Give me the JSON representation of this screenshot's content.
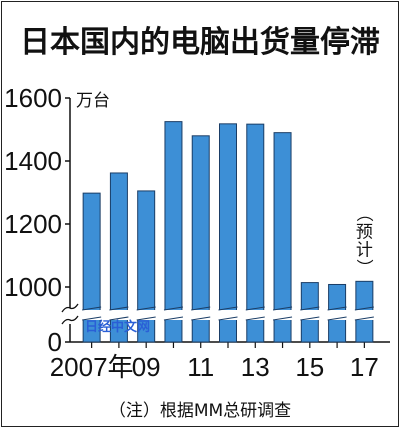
{
  "chart_data": {
    "type": "bar",
    "title": "日本国内的电脑出货量停滞",
    "unit": "万台",
    "categories": [
      "2007",
      "2008",
      "2009",
      "2010",
      "2011",
      "2012",
      "2013",
      "2014",
      "2015",
      "2016",
      "2017"
    ],
    "x_tick_labels": [
      "2007年",
      "09",
      "11",
      "13",
      "15",
      "17"
    ],
    "values": [
      1298,
      1362,
      1305,
      1525,
      1480,
      1518,
      1517,
      1490,
      1014,
      1008,
      1018
    ],
    "y_ticks": [
      0,
      1000,
      1200,
      1400,
      1600
    ],
    "ylim": [
      0,
      1600
    ],
    "axis_break": "between 0 and 1000",
    "grid": false,
    "bar_color": "#3d8fd6",
    "forecast_label": "（预计）",
    "forecast_category": "2017",
    "source_note": "（注）根据MM总研调查",
    "watermark": "日经中文网"
  }
}
